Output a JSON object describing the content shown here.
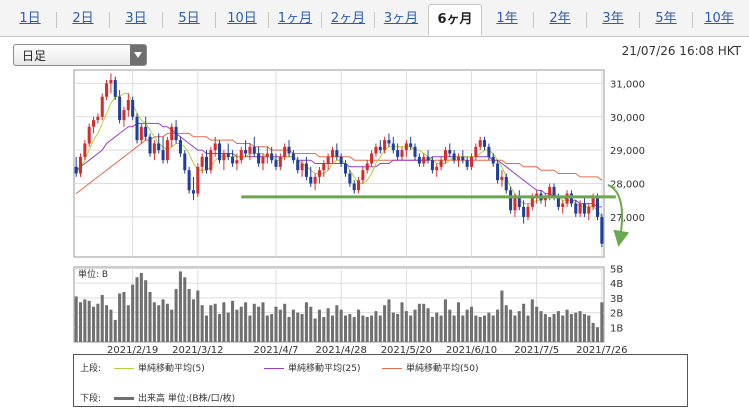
{
  "tabs": [
    {
      "label": "1日"
    },
    {
      "label": "2日"
    },
    {
      "label": "3日"
    },
    {
      "label": "5日"
    },
    {
      "label": "10日"
    },
    {
      "label": "1ヶ月"
    },
    {
      "label": "2ヶ月"
    },
    {
      "label": "3ヶ月"
    },
    {
      "label": "6ヶ月",
      "active": true
    },
    {
      "label": "1年"
    },
    {
      "label": "2年"
    },
    {
      "label": "3年"
    },
    {
      "label": "5年"
    },
    {
      "label": "10年"
    }
  ],
  "selector": {
    "value": "日足"
  },
  "timestamp": "21/07/26 16:08 HKT",
  "legend": {
    "upper_label": "上段:",
    "lower_label": "下段:",
    "ma5": "単純移動平均(5)",
    "ma25": "単純移動平均(25)",
    "ma50": "単純移動平均(50)",
    "volume": "出来高 単位:(B株/口/枚)"
  },
  "colors": {
    "up": "#d62c2c",
    "down": "#1f3f9b",
    "ma5": "#b8cc3c",
    "ma25": "#9a3fc6",
    "ma50": "#e36b4e",
    "volume": "#707070",
    "support": "#6aa84f",
    "accent_tab": "#2a5db0"
  },
  "chart_data": [
    {
      "type": "candlestick",
      "y_tick_labels": [
        "31,000",
        "30,000",
        "29,000",
        "28,000",
        "27,000"
      ],
      "y_ticks": [
        31000,
        30000,
        29000,
        28000,
        27000
      ],
      "ylim": [
        25800,
        31400
      ],
      "x_tick_labels": [
        "2021/2/19",
        "2021/3/12",
        "2021/4/7",
        "2021/4/28",
        "2021/5/20",
        "2021/6/10",
        "2021/7/5",
        "2021/7/26"
      ],
      "x_tick_index": [
        13,
        28,
        46,
        61,
        76,
        91,
        106,
        121
      ],
      "grid": true,
      "ohlc": [
        [
          28500,
          28800,
          28200,
          28300
        ],
        [
          28300,
          28900,
          28200,
          28800
        ],
        [
          28800,
          29300,
          28700,
          29200
        ],
        [
          29200,
          29800,
          29100,
          29700
        ],
        [
          29700,
          30000,
          29500,
          29900
        ],
        [
          29900,
          30100,
          29800,
          30000
        ],
        [
          30000,
          30700,
          29900,
          30600
        ],
        [
          30600,
          31100,
          30500,
          31000
        ],
        [
          31000,
          31300,
          30700,
          31100
        ],
        [
          31100,
          31200,
          30500,
          30600
        ],
        [
          30600,
          30800,
          29800,
          29900
        ],
        [
          29900,
          30300,
          29700,
          30200
        ],
        [
          30200,
          30700,
          30000,
          30500
        ],
        [
          30500,
          30600,
          29900,
          30000
        ],
        [
          30000,
          30100,
          29200,
          29300
        ],
        [
          29300,
          29800,
          29200,
          29700
        ],
        [
          29700,
          30000,
          29300,
          29400
        ],
        [
          29400,
          29500,
          28800,
          28900
        ],
        [
          28900,
          29300,
          28700,
          29200
        ],
        [
          29200,
          29500,
          28900,
          29000
        ],
        [
          29000,
          29400,
          28600,
          28700
        ],
        [
          28700,
          29400,
          28600,
          29300
        ],
        [
          29300,
          29800,
          29100,
          29700
        ],
        [
          29700,
          29900,
          29200,
          29300
        ],
        [
          29300,
          29400,
          28800,
          28900
        ],
        [
          28900,
          29000,
          28300,
          28400
        ],
        [
          28400,
          28500,
          27700,
          27800
        ],
        [
          27800,
          28200,
          27500,
          27700
        ],
        [
          27700,
          28600,
          27600,
          28500
        ],
        [
          28500,
          28900,
          28300,
          28800
        ],
        [
          28800,
          29000,
          28300,
          28400
        ],
        [
          28400,
          29100,
          28300,
          29000
        ],
        [
          29000,
          29400,
          28800,
          29200
        ],
        [
          29200,
          29300,
          28600,
          28700
        ],
        [
          28700,
          29000,
          28400,
          28900
        ],
        [
          28900,
          29200,
          28700,
          28800
        ],
        [
          28800,
          29000,
          28500,
          28600
        ],
        [
          28600,
          28900,
          28400,
          28700
        ],
        [
          28700,
          29100,
          28600,
          29000
        ],
        [
          29000,
          29300,
          28800,
          28900
        ],
        [
          28900,
          29200,
          28700,
          29100
        ],
        [
          29100,
          29400,
          28800,
          28900
        ],
        [
          28900,
          29100,
          28500,
          28600
        ],
        [
          28600,
          28900,
          28400,
          28800
        ],
        [
          28800,
          29100,
          28600,
          28900
        ],
        [
          28900,
          29100,
          28600,
          28700
        ],
        [
          28700,
          28900,
          28400,
          28500
        ],
        [
          28500,
          28900,
          28400,
          28800
        ],
        [
          28800,
          29200,
          28700,
          29100
        ],
        [
          29100,
          29300,
          28800,
          28900
        ],
        [
          28900,
          29000,
          28600,
          28700
        ],
        [
          28700,
          28800,
          28300,
          28400
        ],
        [
          28400,
          28700,
          28200,
          28600
        ],
        [
          28600,
          28800,
          28100,
          28200
        ],
        [
          28200,
          28500,
          27900,
          28000
        ],
        [
          28000,
          28300,
          27800,
          28200
        ],
        [
          28200,
          28500,
          28000,
          28400
        ],
        [
          28400,
          28700,
          28200,
          28600
        ],
        [
          28600,
          28900,
          28400,
          28800
        ],
        [
          28800,
          29100,
          28600,
          29000
        ],
        [
          29000,
          29200,
          28700,
          28800
        ],
        [
          28800,
          28900,
          28500,
          28600
        ],
        [
          28600,
          28700,
          28200,
          28300
        ],
        [
          28300,
          28400,
          27900,
          28000
        ],
        [
          28000,
          28100,
          27700,
          27800
        ],
        [
          27800,
          28200,
          27700,
          28100
        ],
        [
          28100,
          28500,
          28000,
          28400
        ],
        [
          28400,
          28700,
          28300,
          28600
        ],
        [
          28600,
          29000,
          28500,
          28900
        ],
        [
          28900,
          29200,
          28800,
          29100
        ],
        [
          29100,
          29300,
          28900,
          29000
        ],
        [
          29000,
          29400,
          28900,
          29300
        ],
        [
          29300,
          29500,
          29100,
          29200
        ],
        [
          29200,
          29400,
          28900,
          29000
        ],
        [
          29000,
          29200,
          28700,
          28800
        ],
        [
          28800,
          29100,
          28700,
          29000
        ],
        [
          29000,
          29300,
          28800,
          29200
        ],
        [
          29200,
          29400,
          29000,
          29100
        ],
        [
          29100,
          29200,
          28700,
          28800
        ],
        [
          28800,
          28900,
          28500,
          28600
        ],
        [
          28600,
          28900,
          28500,
          28800
        ],
        [
          28800,
          29000,
          28600,
          28700
        ],
        [
          28700,
          28800,
          28300,
          28400
        ],
        [
          28400,
          28600,
          28200,
          28500
        ],
        [
          28500,
          28800,
          28400,
          28700
        ],
        [
          28700,
          29100,
          28600,
          29000
        ],
        [
          29000,
          29200,
          28800,
          28900
        ],
        [
          28900,
          29000,
          28600,
          28700
        ],
        [
          28700,
          28900,
          28500,
          28800
        ],
        [
          28800,
          29000,
          28600,
          28700
        ],
        [
          28700,
          28800,
          28400,
          28500
        ],
        [
          28500,
          28900,
          28400,
          28800
        ],
        [
          28800,
          29200,
          28700,
          29100
        ],
        [
          29100,
          29400,
          29000,
          29300
        ],
        [
          29300,
          29400,
          29000,
          29100
        ],
        [
          29100,
          29200,
          28700,
          28800
        ],
        [
          28800,
          28900,
          28500,
          28600
        ],
        [
          28600,
          28700,
          28000,
          28100
        ],
        [
          28100,
          28400,
          27900,
          28200
        ],
        [
          28200,
          28300,
          27700,
          27800
        ],
        [
          27800,
          27900,
          27100,
          27200
        ],
        [
          27200,
          27700,
          27000,
          27600
        ],
        [
          27600,
          27800,
          27200,
          27300
        ],
        [
          27300,
          27500,
          26800,
          27000
        ],
        [
          27000,
          27400,
          26900,
          27300
        ],
        [
          27300,
          27700,
          27200,
          27600
        ],
        [
          27600,
          27800,
          27400,
          27700
        ],
        [
          27700,
          27800,
          27400,
          27500
        ],
        [
          27500,
          27700,
          27300,
          27600
        ],
        [
          27600,
          28000,
          27500,
          27900
        ],
        [
          27900,
          28000,
          27500,
          27600
        ],
        [
          27600,
          27700,
          27200,
          27300
        ],
        [
          27300,
          27500,
          27100,
          27400
        ],
        [
          27400,
          27800,
          27300,
          27700
        ],
        [
          27700,
          27800,
          27300,
          27400
        ],
        [
          27400,
          27500,
          27000,
          27100
        ],
        [
          27100,
          27500,
          27000,
          27400
        ],
        [
          27400,
          27600,
          27000,
          27100
        ],
        [
          27100,
          27400,
          26900,
          27300
        ],
        [
          27300,
          27700,
          27200,
          27600
        ],
        [
          27600,
          27700,
          26900,
          27000
        ],
        [
          27000,
          27100,
          26100,
          26200
        ]
      ],
      "ma5": [
        28300,
        28500,
        28700,
        29000,
        29300,
        29500,
        29800,
        30100,
        30400,
        30600,
        30600,
        30700,
        30700,
        30400,
        30100,
        29900,
        29800,
        29600,
        29400,
        29200,
        29100,
        29000,
        29100,
        29200,
        29200,
        29100,
        28900,
        28600,
        28400,
        28400,
        28400,
        28500,
        28700,
        28800,
        28800,
        28800,
        28800,
        28800,
        28800,
        28800,
        28900,
        28900,
        28900,
        28900,
        28800,
        28800,
        28700,
        28700,
        28800,
        28800,
        28800,
        28700,
        28600,
        28500,
        28400,
        28300,
        28300,
        28300,
        28400,
        28600,
        28700,
        28700,
        28600,
        28400,
        28200,
        28000,
        28000,
        28100,
        28300,
        28600,
        28800,
        29000,
        29100,
        29100,
        29100,
        29100,
        29100,
        29100,
        29000,
        29000,
        28900,
        28800,
        28700,
        28600,
        28600,
        28600,
        28700,
        28800,
        28800,
        28800,
        28800,
        28800,
        28800,
        28900,
        29000,
        29000,
        28900,
        28700,
        28500,
        28200,
        27900,
        27700,
        27500,
        27400,
        27400,
        27400,
        27500,
        27500,
        27600,
        27700,
        27700,
        27600,
        27500,
        27500,
        27500,
        27400,
        27300,
        27300,
        27300,
        27300,
        27200,
        27000
      ],
      "ma25": [
        28400,
        28500,
        28600,
        28700,
        28800,
        28900,
        29000,
        29200,
        29300,
        29400,
        29500,
        29600,
        29700,
        29700,
        29800,
        29800,
        29800,
        29800,
        29800,
        29800,
        29700,
        29700,
        29600,
        29500,
        29400,
        29300,
        29200,
        29100,
        29000,
        29000,
        28900,
        28900,
        28900,
        28900,
        28900,
        28900,
        28900,
        28800,
        28800,
        28800,
        28800,
        28800,
        28800,
        28800,
        28800,
        28800,
        28800,
        28800,
        28800,
        28800,
        28800,
        28700,
        28700,
        28700,
        28700,
        28600,
        28600,
        28600,
        28600,
        28600,
        28600,
        28600,
        28600,
        28500,
        28500,
        28500,
        28500,
        28500,
        28500,
        28500,
        28600,
        28600,
        28600,
        28700,
        28700,
        28700,
        28700,
        28700,
        28700,
        28700,
        28700,
        28700,
        28800,
        28800,
        28800,
        28800,
        28800,
        28800,
        28800,
        28800,
        28800,
        28800,
        28800,
        28800,
        28800,
        28800,
        28700,
        28700,
        28600,
        28500,
        28400,
        28300,
        28200,
        28100,
        28000,
        27900,
        27800,
        27800,
        27700,
        27700,
        27600,
        27600,
        27600,
        27500,
        27500,
        27500,
        27400,
        27400,
        27400,
        27400,
        27300,
        27300
      ],
      "ma50": [
        27700,
        27800,
        27900,
        28000,
        28100,
        28200,
        28300,
        28400,
        28500,
        28600,
        28700,
        28800,
        28900,
        29000,
        29100,
        29200,
        29300,
        29300,
        29400,
        29400,
        29400,
        29500,
        29500,
        29500,
        29500,
        29500,
        29500,
        29400,
        29400,
        29400,
        29400,
        29300,
        29300,
        29300,
        29300,
        29300,
        29300,
        29200,
        29200,
        29200,
        29200,
        29100,
        29100,
        29100,
        29100,
        29000,
        29000,
        29000,
        29000,
        29000,
        28900,
        28900,
        28900,
        28900,
        28900,
        28900,
        28800,
        28800,
        28800,
        28800,
        28800,
        28800,
        28800,
        28800,
        28700,
        28700,
        28700,
        28700,
        28700,
        28700,
        28700,
        28700,
        28700,
        28700,
        28700,
        28700,
        28700,
        28700,
        28700,
        28700,
        28700,
        28700,
        28700,
        28700,
        28700,
        28700,
        28700,
        28700,
        28700,
        28700,
        28700,
        28700,
        28700,
        28700,
        28700,
        28700,
        28700,
        28700,
        28700,
        28600,
        28600,
        28600,
        28600,
        28500,
        28500,
        28500,
        28500,
        28400,
        28400,
        28400,
        28400,
        28300,
        28300,
        28300,
        28300,
        28300,
        28200,
        28200,
        28200,
        28200,
        28200,
        28100
      ],
      "support_level": 27600
    },
    {
      "type": "bar",
      "unit_label": "単位: B",
      "y_tick_labels": [
        "5B",
        "4B",
        "3B",
        "2B",
        "1B"
      ],
      "y_ticks": [
        5,
        4,
        3,
        2,
        1
      ],
      "ylim": [
        0,
        5.1
      ],
      "values": [
        3.1,
        2.7,
        2.9,
        2.8,
        2.4,
        2.6,
        3.2,
        2.5,
        2.2,
        1.5,
        3.3,
        3.4,
        2.5,
        3.9,
        4.4,
        4.7,
        4.2,
        3.4,
        2.7,
        2.5,
        2.9,
        2.6,
        2.2,
        3.6,
        4.8,
        4.4,
        3.6,
        2.9,
        3.5,
        2.5,
        1.8,
        2.5,
        2.6,
        1.9,
        2.7,
        2.0,
        2.8,
        2.2,
        2.4,
        2.7,
        1.8,
        2.6,
        2.4,
        2.7,
        1.8,
        1.9,
        2.4,
        2.2,
        2.6,
        1.7,
        2.2,
        2.0,
        1.9,
        2.7,
        2.4,
        1.6,
        2.2,
        1.7,
        2.3,
        1.8,
        2.5,
        2.2,
        1.8,
        1.9,
        1.7,
        2.2,
        1.8,
        1.7,
        1.8,
        2.1,
        1.8,
        2.5,
        2.9,
        2.0,
        1.9,
        2.7,
        2.1,
        1.8,
        2.2,
        2.6,
        2.6,
        2.3,
        1.7,
        2.0,
        1.8,
        2.9,
        2.2,
        1.8,
        2.7,
        1.8,
        2.2,
        2.4,
        1.8,
        1.7,
        1.8,
        2.0,
        1.8,
        2.2,
        3.5,
        2.5,
        2.2,
        1.8,
        2.1,
        2.6,
        1.8,
        2.9,
        2.4,
        2.1,
        1.9,
        1.7,
        1.9,
        2.1,
        1.8,
        2.2,
        1.9,
        2.0,
        2.1,
        1.9,
        1.8,
        1.3,
        1.0,
        2.7
      ]
    }
  ]
}
